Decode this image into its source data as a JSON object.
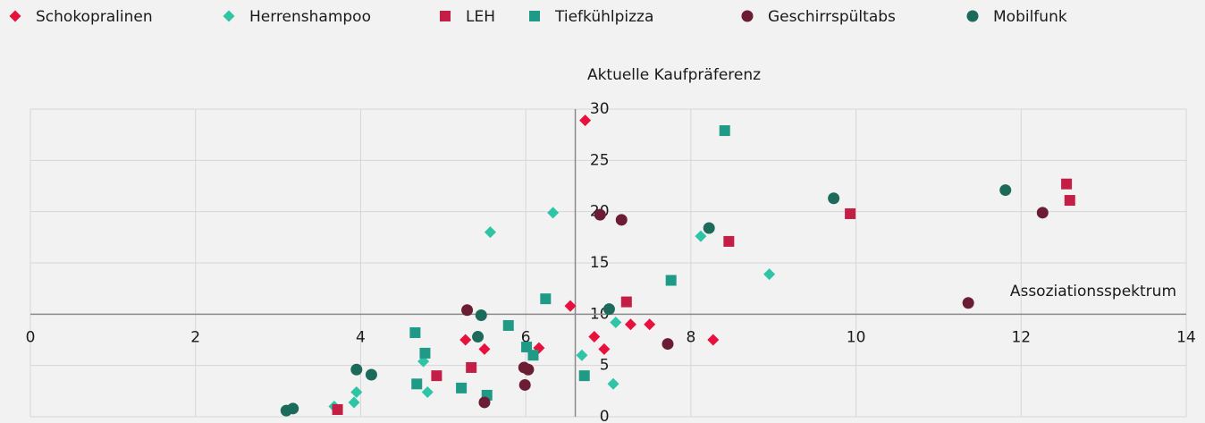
{
  "chart_data": {
    "type": "scatter",
    "xlabel": "Assoziationsspektrum",
    "ylabel": "Aktuelle Kaufpräferenz",
    "xlim": [
      0,
      14
    ],
    "ylim": [
      0,
      30
    ],
    "xticks": [
      0,
      2,
      4,
      6,
      8,
      10,
      12,
      14
    ],
    "yticks": [
      0,
      5,
      10,
      15,
      20,
      25,
      30
    ],
    "grid": true,
    "legend": "top",
    "axis_cross": {
      "x": 6.6,
      "y": 10
    },
    "series": [
      {
        "name": "Schokopralinen",
        "color": "#e8103c",
        "marker": "diamond",
        "x": [
          6.72,
          6.54,
          5.27,
          5.5,
          6.16,
          6.83,
          6.95,
          7.27,
          7.5,
          8.27
        ],
        "values": [
          28.9,
          10.8,
          7.5,
          6.6,
          6.7,
          7.8,
          6.6,
          9.0,
          9.0,
          7.5
        ]
      },
      {
        "name": "Herrenshampoo",
        "color": "#2ec4a6",
        "marker": "diamond",
        "x": [
          6.33,
          5.57,
          8.12,
          8.95,
          7.09,
          6.68,
          4.76,
          7.06,
          4.81,
          3.95,
          3.92,
          3.68
        ],
        "values": [
          19.9,
          18.0,
          17.6,
          13.9,
          9.2,
          6.0,
          5.4,
          3.2,
          2.4,
          2.4,
          1.4,
          1.0
        ]
      },
      {
        "name": "LEH",
        "color": "#c41e46",
        "marker": "square",
        "x": [
          12.55,
          12.59,
          9.93,
          8.46,
          7.22,
          4.92,
          5.34,
          3.72
        ],
        "values": [
          22.7,
          21.1,
          19.8,
          17.1,
          11.2,
          4.0,
          4.8,
          0.7
        ]
      },
      {
        "name": "Tiefkühlpizza",
        "color": "#1f9a87",
        "marker": "square",
        "x": [
          8.41,
          7.76,
          6.24,
          5.79,
          4.66,
          4.78,
          6.01,
          6.09,
          6.71,
          4.68,
          5.22,
          5.53
        ],
        "values": [
          27.9,
          13.3,
          11.5,
          8.9,
          8.2,
          6.2,
          6.8,
          6.0,
          4.0,
          3.2,
          2.8,
          2.1
        ]
      },
      {
        "name": "Geschirrspültabs",
        "color": "#6b1d34",
        "marker": "circle",
        "x": [
          12.26,
          6.9,
          7.16,
          11.36,
          5.29,
          7.72,
          5.98,
          6.03,
          5.99,
          5.5
        ],
        "values": [
          19.9,
          19.7,
          19.2,
          11.1,
          10.4,
          7.1,
          4.8,
          4.6,
          3.1,
          1.4
        ]
      },
      {
        "name": "Mobilfunk",
        "color": "#1c6b5a",
        "marker": "circle",
        "x": [
          11.81,
          9.73,
          8.22,
          7.01,
          5.46,
          5.42,
          3.95,
          4.13,
          3.18,
          3.1
        ],
        "values": [
          22.1,
          21.3,
          18.4,
          10.5,
          9.9,
          7.8,
          4.6,
          4.1,
          0.8,
          0.6
        ]
      }
    ]
  }
}
